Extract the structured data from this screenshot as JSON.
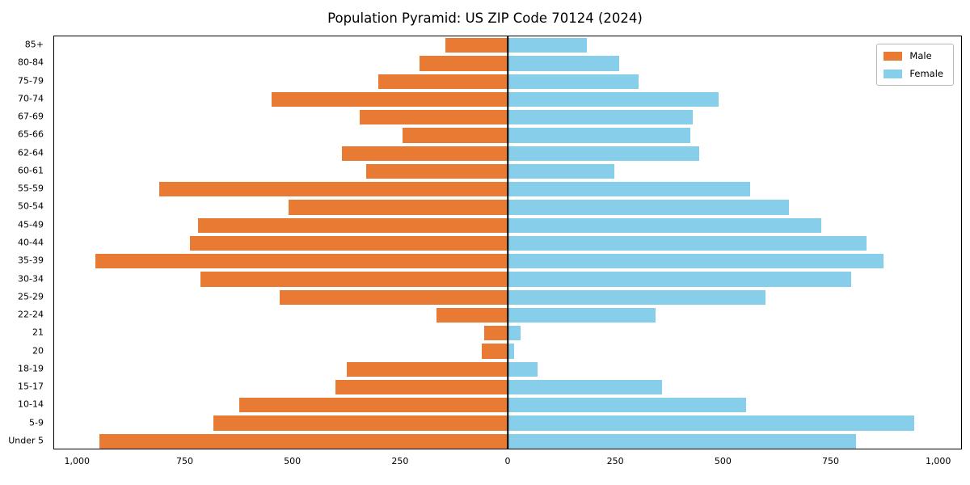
{
  "title": "Population Pyramid: US ZIP Code 70124 (2024)",
  "chart_data": {
    "type": "bar",
    "subtype": "population-pyramid",
    "orientation": "horizontal",
    "title": "Population Pyramid: US ZIP Code 70124 (2024)",
    "xlabel": "",
    "ylabel": "",
    "categories": [
      "85+",
      "80-84",
      "75-79",
      "70-74",
      "67-69",
      "65-66",
      "62-64",
      "60-61",
      "55-59",
      "50-54",
      "45-49",
      "40-44",
      "35-39",
      "30-34",
      "25-29",
      "22-24",
      "21",
      "20",
      "18-19",
      "15-17",
      "10-14",
      "5-9",
      "Under 5"
    ],
    "series": [
      {
        "name": "Male",
        "side": "left",
        "color": "#E87A33",
        "values": [
          145,
          205,
          300,
          550,
          345,
          245,
          385,
          330,
          810,
          510,
          720,
          740,
          960,
          715,
          530,
          165,
          55,
          60,
          375,
          400,
          625,
          685,
          950
        ]
      },
      {
        "name": "Female",
        "side": "right",
        "color": "#87CEEB",
        "values": [
          185,
          260,
          305,
          490,
          430,
          425,
          445,
          248,
          565,
          655,
          730,
          835,
          875,
          800,
          600,
          345,
          30,
          15,
          70,
          360,
          555,
          945,
          810
        ]
      }
    ],
    "xlim": [
      -1055,
      1055
    ],
    "x_ticks": [
      -1000,
      -750,
      -500,
      -250,
      0,
      250,
      500,
      750,
      1000
    ],
    "x_tick_labels": [
      "1,000",
      "750",
      "500",
      "250",
      "0",
      "250",
      "500",
      "750",
      "1,000"
    ],
    "grid": false,
    "legend_position": "upper right",
    "center_axis_line": true
  }
}
